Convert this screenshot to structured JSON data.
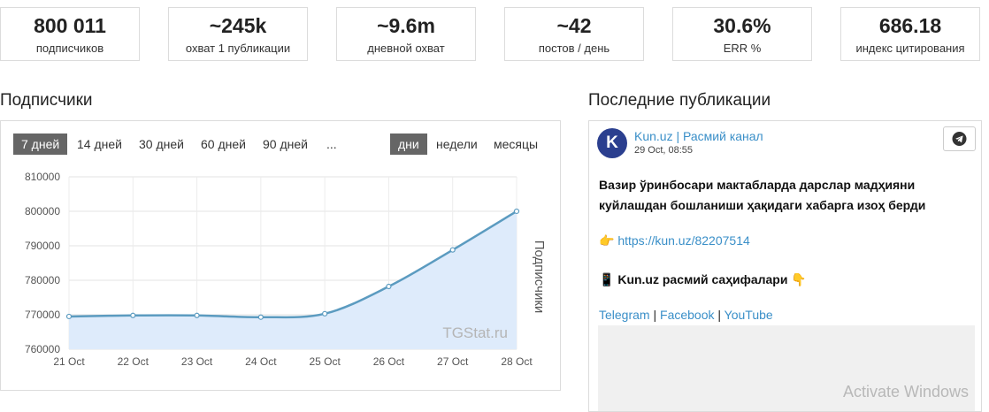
{
  "stats": [
    {
      "value": "800 011",
      "label": "подписчиков"
    },
    {
      "value": "~245k",
      "label": "охват 1 публикации"
    },
    {
      "value": "~9.6m",
      "label": "дневной охват"
    },
    {
      "value": "~42",
      "label": "постов / день"
    },
    {
      "value": "30.6%",
      "label": "ERR %"
    },
    {
      "value": "686.18",
      "label": "индекс цитирования"
    }
  ],
  "subscribers_section": {
    "title": "Подписчики",
    "period_buttons": [
      "7 дней",
      "14 дней",
      "30 дней",
      "60 дней",
      "90 дней",
      "..."
    ],
    "active_period": "7 дней",
    "granularity_buttons": [
      "дни",
      "недели",
      "месяцы"
    ],
    "active_granularity": "дни",
    "watermark": "TGStat.ru"
  },
  "chart_data": {
    "type": "area",
    "x": [
      "21 Oct",
      "22 Oct",
      "23 Oct",
      "24 Oct",
      "25 Oct",
      "26 Oct",
      "27 Oct",
      "28 Oct"
    ],
    "series": [
      {
        "name": "Подписчики",
        "values": [
          769500,
          769800,
          769800,
          769300,
          770300,
          778200,
          788800,
          800011
        ]
      }
    ],
    "ylabel": "Подписчики",
    "yticks": [
      "810000",
      "800000",
      "790000",
      "780000",
      "770000",
      "760000"
    ],
    "ylim": [
      760000,
      810000
    ],
    "grid": true,
    "line_color": "#5b9bc0",
    "fill_color": "#deebfb"
  },
  "posts_section": {
    "title": "Последние публикации",
    "channel_name": "Kun.uz | Расмий канал",
    "avatar_letter": "K",
    "date": "29 Oct, 08:55",
    "headline_line1": "Вазир ўринбосари мактабларда дарслар мадҳияни",
    "headline_line2": "куйлашдан бошланиши ҳақидаги хабарга изоҳ берди",
    "link_emoji": "👉",
    "link": "https://kun.uz/82207514",
    "pages_emoji": "📱",
    "pages_text": "Kun.uz расмий саҳифалари",
    "pages_emoji2": "👇",
    "social_links": [
      "Telegram",
      "Facebook",
      "YouTube"
    ],
    "separator": "|"
  },
  "os_watermark": "Activate Windows",
  "colors": {
    "accent": "#3a8fc8",
    "active_button": "#666666",
    "avatar": "#2b3f8f"
  }
}
